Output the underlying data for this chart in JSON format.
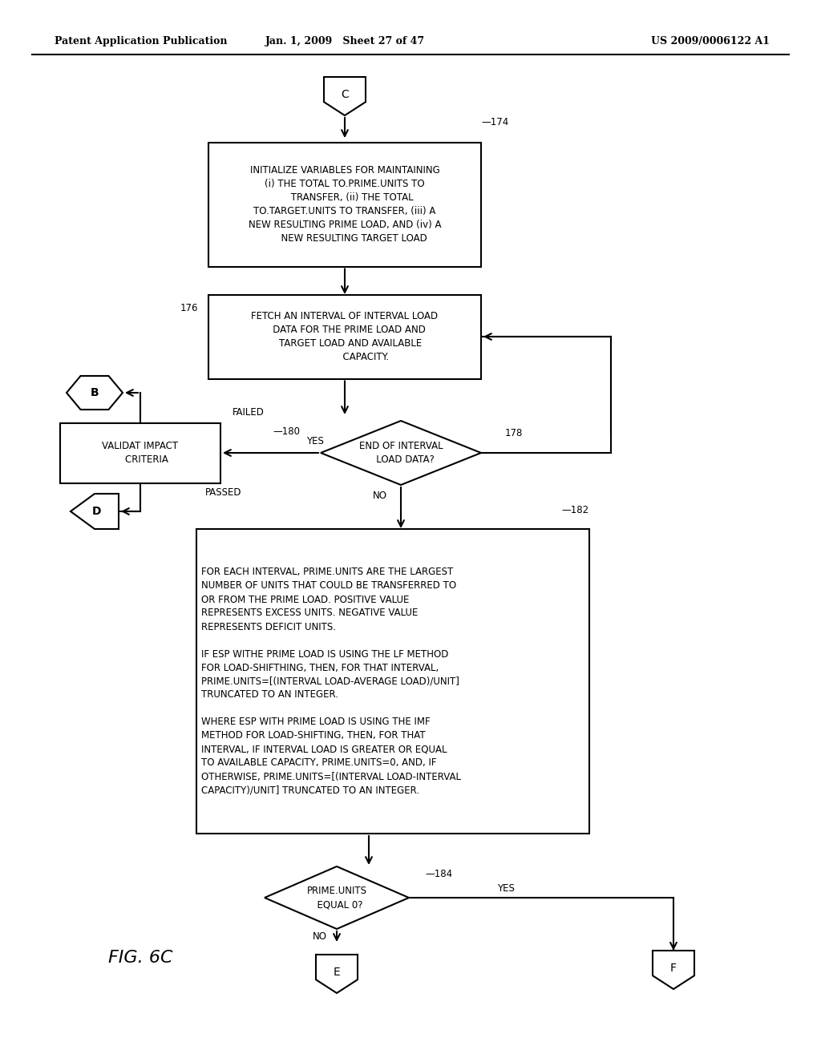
{
  "header_left": "Patent Application Publication",
  "header_mid": "Jan. 1, 2009   Sheet 27 of 47",
  "header_right": "US 2009/0006122 A1",
  "fig_label": "FIG. 6C",
  "bg_color": "#ffffff",
  "line_color": "#000000",
  "text_color": "#000000"
}
